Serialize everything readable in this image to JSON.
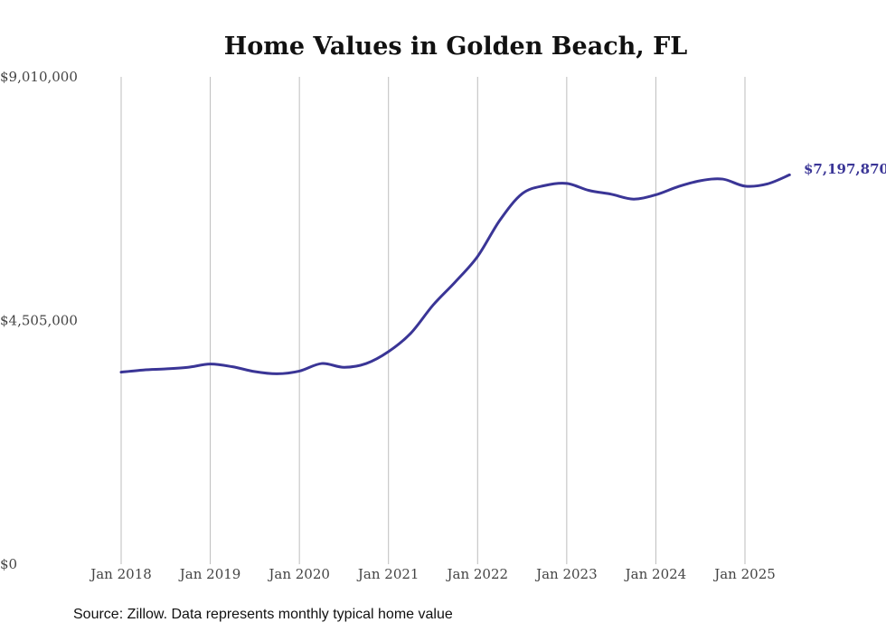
{
  "chart_data": {
    "type": "line",
    "title": "Home Values in Golden Beach, FL",
    "xlabel": "",
    "ylabel": "",
    "source": "Source: Zillow. Data represents monthly typical home value",
    "ylim": [
      0,
      9010000
    ],
    "yticks": [
      {
        "value": 0,
        "label": "$0"
      },
      {
        "value": 4505000,
        "label": "$4,505,000"
      },
      {
        "value": 9010000,
        "label": "$9,010,000"
      }
    ],
    "xlim": [
      "2018-01",
      "2025-07"
    ],
    "xticks": [
      {
        "date": "2018-01",
        "label": "Jan 2018"
      },
      {
        "date": "2019-01",
        "label": "Jan 2019"
      },
      {
        "date": "2020-01",
        "label": "Jan 2020"
      },
      {
        "date": "2021-01",
        "label": "Jan 2021"
      },
      {
        "date": "2022-01",
        "label": "Jan 2022"
      },
      {
        "date": "2023-01",
        "label": "Jan 2023"
      },
      {
        "date": "2024-01",
        "label": "Jan 2024"
      },
      {
        "date": "2025-01",
        "label": "Jan 2025"
      }
    ],
    "grid": "vertical",
    "line_color": "#3a3596",
    "end_label": "$7,197,870",
    "series": [
      {
        "points": [
          {
            "x": "2018-01",
            "y": 3550000
          },
          {
            "x": "2018-04",
            "y": 3590000
          },
          {
            "x": "2018-07",
            "y": 3610000
          },
          {
            "x": "2018-10",
            "y": 3640000
          },
          {
            "x": "2019-01",
            "y": 3700000
          },
          {
            "x": "2019-04",
            "y": 3650000
          },
          {
            "x": "2019-07",
            "y": 3560000
          },
          {
            "x": "2019-10",
            "y": 3520000
          },
          {
            "x": "2020-01",
            "y": 3570000
          },
          {
            "x": "2020-04",
            "y": 3710000
          },
          {
            "x": "2020-07",
            "y": 3640000
          },
          {
            "x": "2020-10",
            "y": 3710000
          },
          {
            "x": "2021-01",
            "y": 3930000
          },
          {
            "x": "2021-04",
            "y": 4270000
          },
          {
            "x": "2021-07",
            "y": 4790000
          },
          {
            "x": "2021-10",
            "y": 5220000
          },
          {
            "x": "2022-01",
            "y": 5690000
          },
          {
            "x": "2022-04",
            "y": 6360000
          },
          {
            "x": "2022-07",
            "y": 6850000
          },
          {
            "x": "2022-10",
            "y": 7000000
          },
          {
            "x": "2023-01",
            "y": 7040000
          },
          {
            "x": "2023-04",
            "y": 6910000
          },
          {
            "x": "2023-07",
            "y": 6840000
          },
          {
            "x": "2023-10",
            "y": 6750000
          },
          {
            "x": "2024-01",
            "y": 6830000
          },
          {
            "x": "2024-04",
            "y": 6980000
          },
          {
            "x": "2024-07",
            "y": 7090000
          },
          {
            "x": "2024-10",
            "y": 7120000
          },
          {
            "x": "2025-01",
            "y": 6990000
          },
          {
            "x": "2025-04",
            "y": 7030000
          },
          {
            "x": "2025-07",
            "y": 7197870
          }
        ]
      }
    ]
  }
}
